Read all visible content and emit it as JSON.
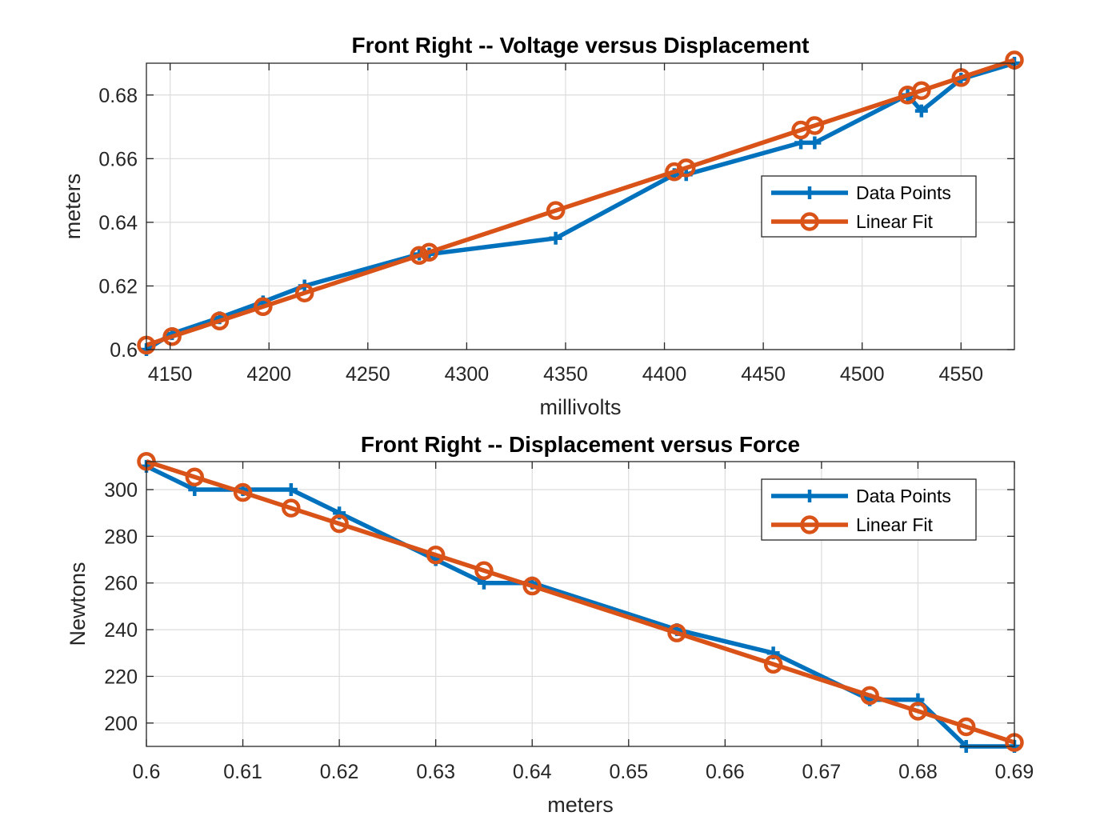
{
  "chart_data": [
    {
      "type": "line",
      "title": "Front Right -- Voltage versus Displacement",
      "xlabel": "millivolts",
      "ylabel": "meters",
      "xlim": [
        4138,
        4577
      ],
      "ylim": [
        0.6,
        0.69
      ],
      "xticks": [
        4150,
        4200,
        4250,
        4300,
        4350,
        4400,
        4450,
        4500,
        4550
      ],
      "yticks": [
        0.6,
        0.62,
        0.64,
        0.66,
        0.68
      ],
      "ytick_labels": [
        "0.6",
        "0.62",
        "0.64",
        "0.66",
        "0.68"
      ],
      "grid": true,
      "legend_position": "right",
      "series": [
        {
          "name": "Data Points",
          "color": "#0072BD",
          "marker": "plus",
          "x": [
            4138,
            4151,
            4175,
            4197,
            4218,
            4276,
            4281,
            4345,
            4405,
            4411,
            4469,
            4476,
            4523,
            4530,
            4550,
            4577
          ],
          "y": [
            0.6,
            0.605,
            0.61,
            0.615,
            0.62,
            0.63,
            0.63,
            0.635,
            0.655,
            0.655,
            0.665,
            0.665,
            0.68,
            0.675,
            0.685,
            0.69
          ]
        },
        {
          "name": "Linear Fit",
          "color": "#D95319",
          "marker": "circle",
          "x": [
            4138,
            4151,
            4175,
            4197,
            4218,
            4276,
            4281,
            4345,
            4405,
            4411,
            4469,
            4476,
            4523,
            4530,
            4550,
            4577
          ],
          "y": [
            0.6014,
            0.6041,
            0.609,
            0.6135,
            0.6178,
            0.6296,
            0.6306,
            0.6437,
            0.6559,
            0.6571,
            0.669,
            0.6704,
            0.68,
            0.6814,
            0.6855,
            0.691
          ]
        }
      ]
    },
    {
      "type": "line",
      "title": "Front Right -- Displacement versus Force",
      "xlabel": "meters",
      "ylabel": "Newtons",
      "xlim": [
        0.6,
        0.69
      ],
      "ylim": [
        190,
        312
      ],
      "xticks": [
        0.6,
        0.61,
        0.62,
        0.63,
        0.64,
        0.65,
        0.66,
        0.67,
        0.68,
        0.69
      ],
      "xtick_labels": [
        "0.6",
        "0.61",
        "0.62",
        "0.63",
        "0.64",
        "0.65",
        "0.66",
        "0.67",
        "0.68",
        "0.69"
      ],
      "yticks": [
        200,
        220,
        240,
        260,
        280,
        300
      ],
      "grid": true,
      "legend_position": "top-right",
      "series": [
        {
          "name": "Data Points",
          "color": "#0072BD",
          "marker": "plus",
          "x": [
            0.6,
            0.605,
            0.61,
            0.615,
            0.62,
            0.63,
            0.635,
            0.64,
            0.655,
            0.665,
            0.675,
            0.68,
            0.685,
            0.69
          ],
          "y": [
            310,
            300,
            300,
            300,
            290,
            270,
            260,
            260,
            240,
            230,
            210,
            210,
            190,
            190
          ]
        },
        {
          "name": "Linear Fit",
          "color": "#D95319",
          "marker": "circle",
          "x": [
            0.6,
            0.605,
            0.61,
            0.615,
            0.62,
            0.63,
            0.635,
            0.64,
            0.655,
            0.665,
            0.675,
            0.68,
            0.685,
            0.69
          ],
          "y": [
            312.1,
            305.4,
            298.8,
            292.1,
            285.4,
            272.0,
            265.3,
            258.7,
            238.6,
            225.2,
            211.8,
            205.1,
            198.4,
            191.7
          ]
        }
      ]
    }
  ]
}
